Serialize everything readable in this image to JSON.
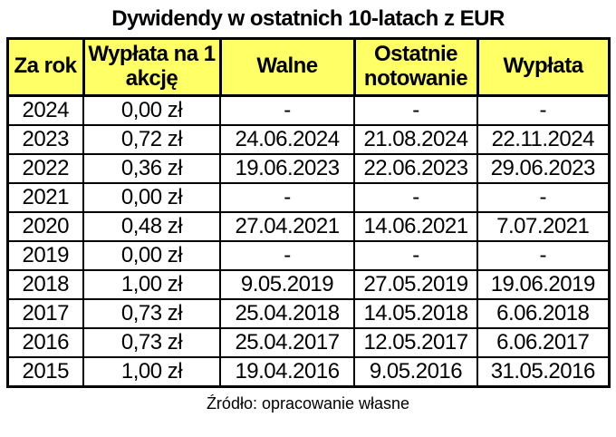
{
  "title": "Dywidendy w ostatnich 10-latach z EUR",
  "source": "Źródło: opracowanie własne",
  "colors": {
    "header_bg": "#FFFF66",
    "border": "#000000",
    "text": "#000000",
    "page_bg": "#FFFFFF"
  },
  "table": {
    "columns": [
      "Za rok",
      "Wypłata na 1 akcję",
      "Walne",
      "Ostatnie notowanie",
      "Wypłata"
    ],
    "rows": [
      [
        "2024",
        "0,00 zł",
        "-",
        "-",
        "-"
      ],
      [
        "2023",
        "0,72 zł",
        "24.06.2024",
        "21.08.2024",
        "22.11.2024"
      ],
      [
        "2022",
        "0,36 zł",
        "19.06.2023",
        "22.06.2023",
        "29.06.2023"
      ],
      [
        "2021",
        "0,00 zł",
        "-",
        "-",
        "-"
      ],
      [
        "2020",
        "0,48 zł",
        "27.04.2021",
        "14.06.2021",
        "7.07.2021"
      ],
      [
        "2019",
        "0,00 zł",
        "-",
        "-",
        "-"
      ],
      [
        "2018",
        "1,00 zł",
        "9.05.2019",
        "27.05.2019",
        "19.06.2019"
      ],
      [
        "2017",
        "0,73 zł",
        "25.04.2018",
        "14.05.2018",
        "6.06.2018"
      ],
      [
        "2016",
        "0,73 zł",
        "25.04.2017",
        "12.05.2017",
        "6.06.2017"
      ],
      [
        "2015",
        "1,00 zł",
        "19.04.2016",
        "9.05.2016",
        "31.05.2016"
      ]
    ]
  }
}
